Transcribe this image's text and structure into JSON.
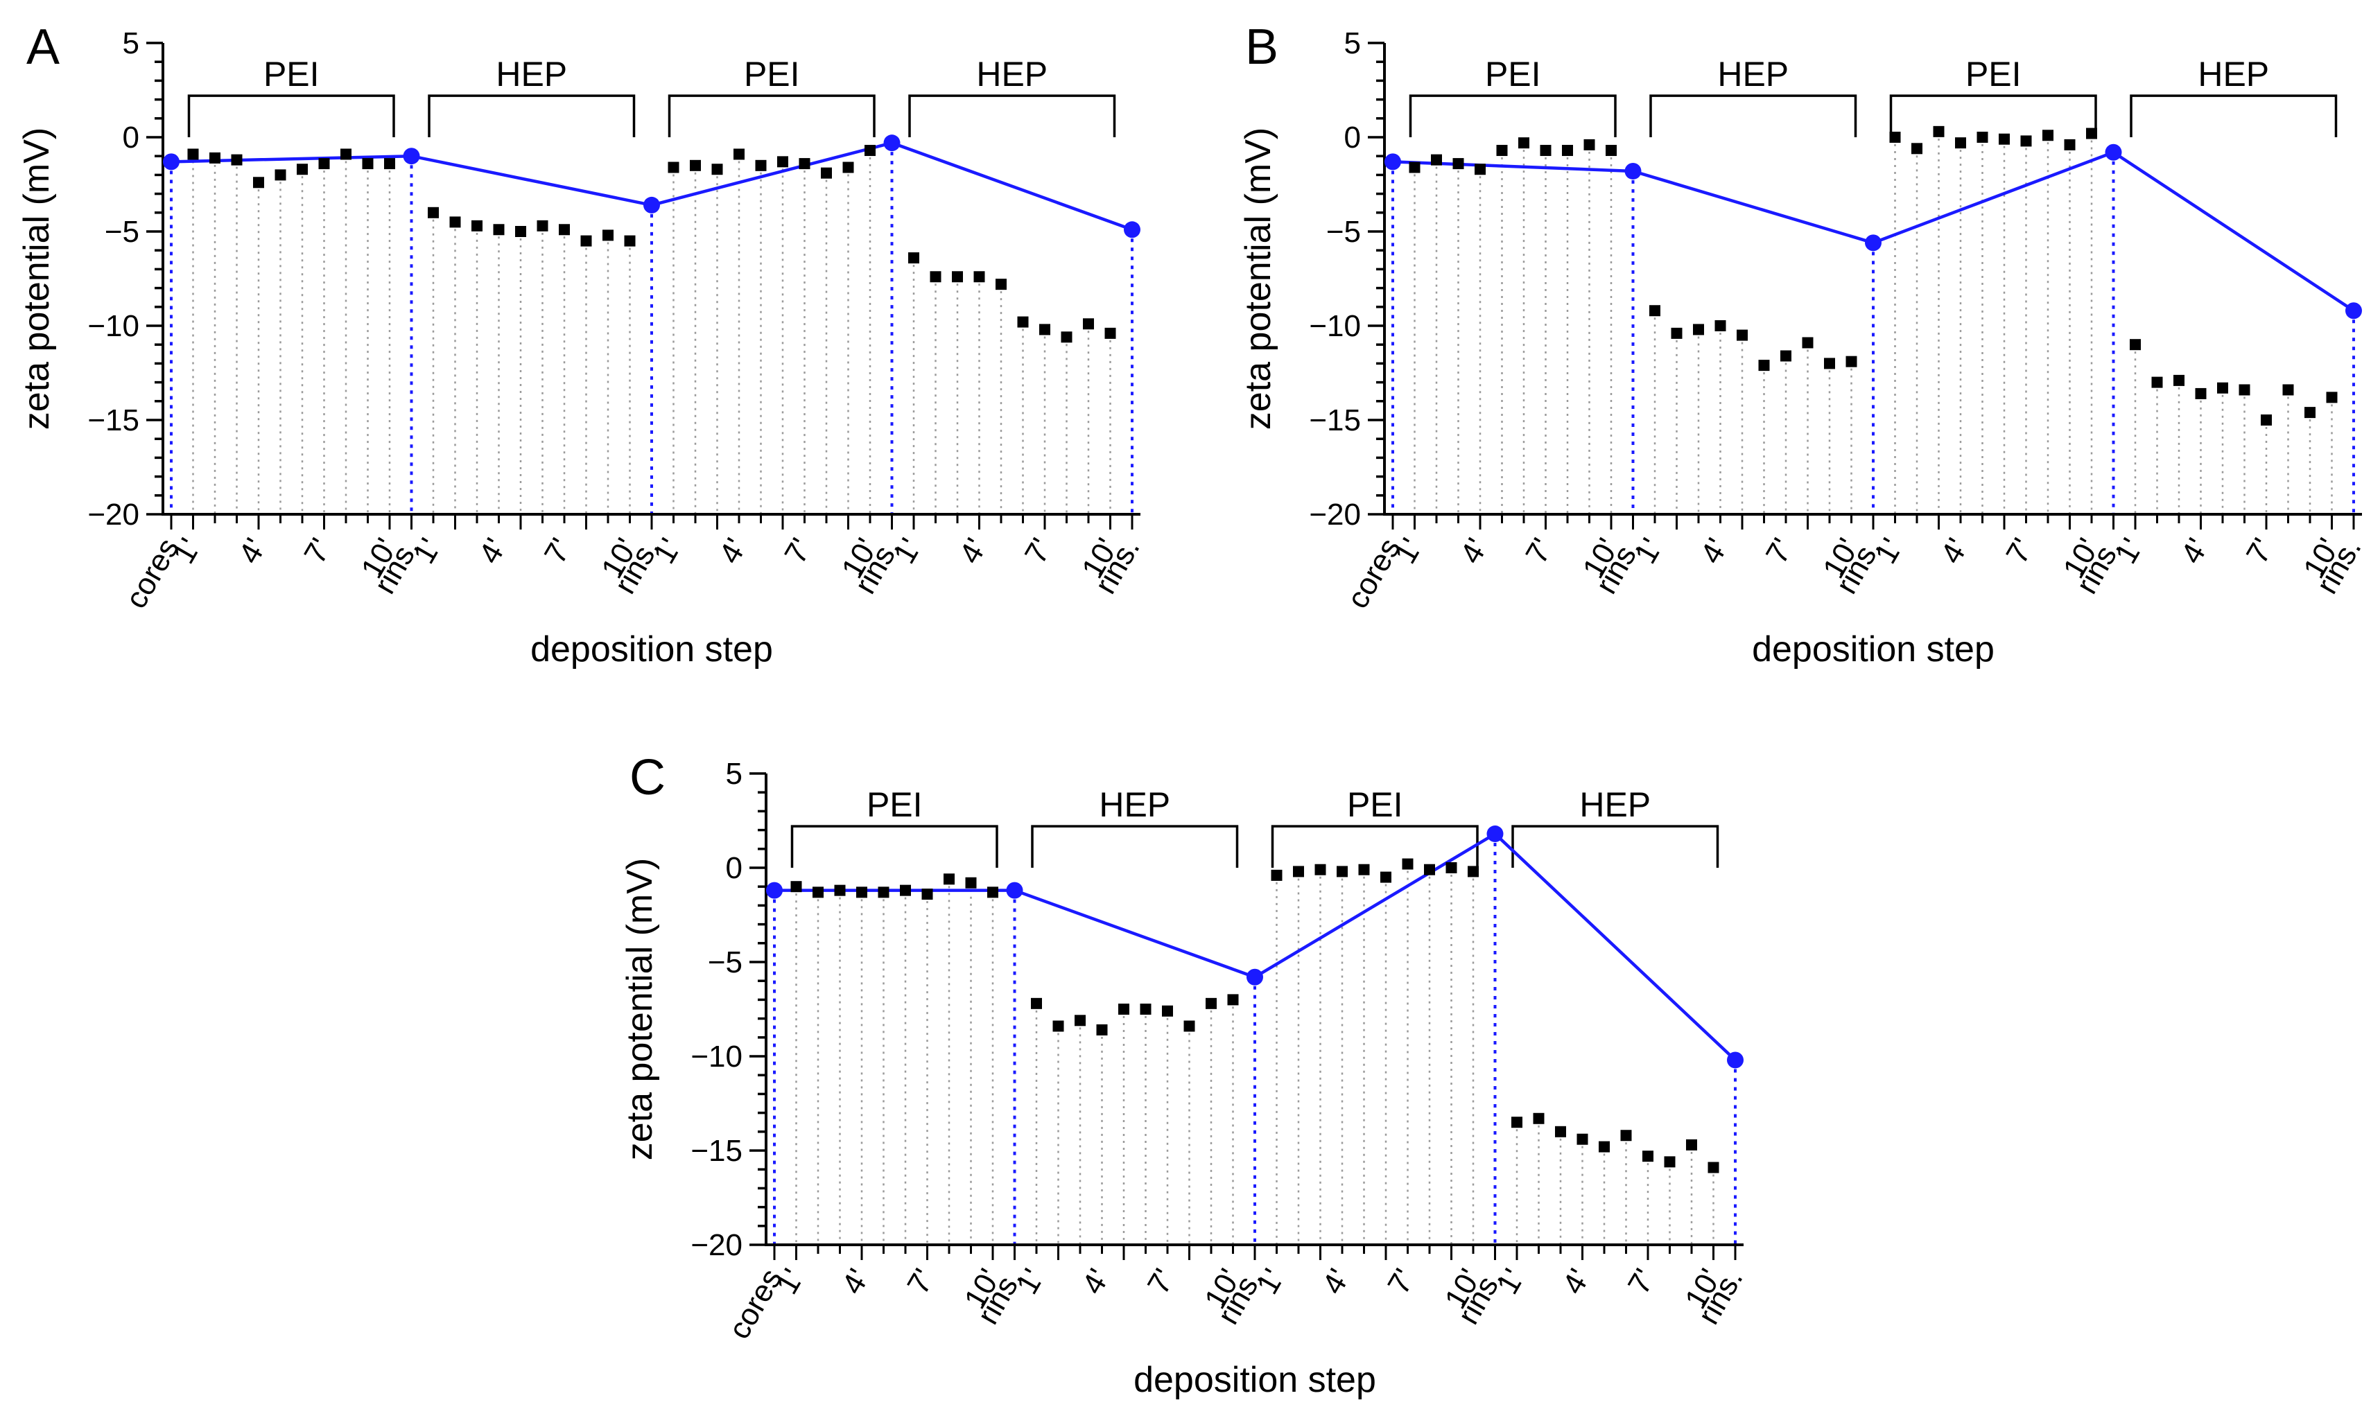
{
  "chart_data": [
    {
      "panel": "A",
      "type": "scatter",
      "xlabel": "deposition step",
      "ylabel": "zeta potential (mV)",
      "ylim": [
        -20,
        5
      ],
      "yticks": [
        5,
        0,
        -5,
        -10,
        -15,
        -20
      ],
      "ytick_labels": [
        "5",
        "0",
        "−5",
        "−10",
        "−15",
        "−20"
      ],
      "x_tick_labels": [
        "cores",
        "1'",
        "4'",
        "7'",
        "10'",
        "rins.",
        "1'",
        "4'",
        "7'",
        "10'",
        "rins.",
        "1'",
        "4'",
        "7'",
        "10'",
        "rins.",
        "1'",
        "4'",
        "7'",
        "10'",
        "rins."
      ],
      "phases": [
        "PEI",
        "HEP",
        "PEI",
        "HEP"
      ],
      "blue_series": {
        "name": "cores / rinsed",
        "color": "#1a1aff",
        "x": [
          0,
          11,
          22,
          33,
          44
        ],
        "values": [
          -1.3,
          -1.0,
          -3.6,
          -0.3,
          -4.9
        ]
      },
      "black_series": [
        [
          -0.9,
          -1.1,
          -1.2,
          -2.4,
          -2.0,
          -1.7,
          -1.4,
          -0.9,
          -1.4,
          -1.4
        ],
        [
          -4.0,
          -4.5,
          -4.7,
          -4.9,
          -5.0,
          -4.7,
          -4.9,
          -5.5,
          -5.2,
          -5.5
        ],
        [
          -1.6,
          -1.5,
          -1.7,
          -0.9,
          -1.5,
          -1.3,
          -1.4,
          -1.9,
          -1.6,
          -0.7
        ],
        [
          -6.4,
          -7.4,
          -7.4,
          -7.4,
          -7.8,
          -9.8,
          -10.2,
          -10.6,
          -9.9,
          -10.4
        ]
      ]
    },
    {
      "panel": "B",
      "type": "scatter",
      "xlabel": "deposition step",
      "ylabel": "zeta potential (mV)",
      "ylim": [
        -20,
        5
      ],
      "yticks": [
        5,
        0,
        -5,
        -10,
        -15,
        -20
      ],
      "ytick_labels": [
        "5",
        "0",
        "−5",
        "−10",
        "−15",
        "−20"
      ],
      "x_tick_labels": [
        "cores",
        "1'",
        "4'",
        "7'",
        "10'",
        "rins.",
        "1'",
        "4'",
        "7'",
        "10'",
        "rins.",
        "1'",
        "4'",
        "7'",
        "10'",
        "rins.",
        "1'",
        "4'",
        "7'",
        "10'",
        "rins."
      ],
      "phases": [
        "PEI",
        "HEP",
        "PEI",
        "HEP"
      ],
      "blue_series": {
        "name": "cores / rinsed",
        "color": "#1a1aff",
        "x": [
          0,
          11,
          22,
          33,
          44
        ],
        "values": [
          -1.3,
          -1.8,
          -5.6,
          -0.8,
          -9.2
        ]
      },
      "black_series": [
        [
          -1.6,
          -1.2,
          -1.4,
          -1.7,
          -0.7,
          -0.3,
          -0.7,
          -0.7,
          -0.4,
          -0.7
        ],
        [
          -9.2,
          -10.4,
          -10.2,
          -10.0,
          -10.5,
          -12.1,
          -11.6,
          -10.9,
          -12.0,
          -11.9
        ],
        [
          0.0,
          -0.6,
          0.3,
          -0.3,
          0.0,
          -0.1,
          -0.2,
          0.1,
          -0.4,
          0.2
        ],
        [
          -11.0,
          -13.0,
          -12.9,
          -13.6,
          -13.3,
          -13.4,
          -15.0,
          -13.4,
          -14.6,
          -13.8
        ]
      ]
    },
    {
      "panel": "C",
      "type": "scatter",
      "xlabel": "deposition step",
      "ylabel": "zeta potential (mV)",
      "ylim": [
        -20,
        5
      ],
      "yticks": [
        5,
        0,
        -5,
        -10,
        -15,
        -20
      ],
      "ytick_labels": [
        "5",
        "0",
        "−5",
        "−10",
        "−15",
        "−20"
      ],
      "x_tick_labels": [
        "cores",
        "1'",
        "4'",
        "7'",
        "10'",
        "rins.",
        "1'",
        "4'",
        "7'",
        "10'",
        "rins.",
        "1'",
        "4'",
        "7'",
        "10'",
        "rins.",
        "1'",
        "4'",
        "7'",
        "10'",
        "rins."
      ],
      "phases": [
        "PEI",
        "HEP",
        "PEI",
        "HEP"
      ],
      "blue_series": {
        "name": "cores / rinsed",
        "color": "#1a1aff",
        "x": [
          0,
          11,
          22,
          33,
          44
        ],
        "values": [
          -1.2,
          -1.2,
          -5.8,
          1.8,
          -10.2
        ]
      },
      "black_series": [
        [
          -1.0,
          -1.3,
          -1.2,
          -1.3,
          -1.3,
          -1.2,
          -1.4,
          -0.6,
          -0.8,
          -1.3
        ],
        [
          -7.2,
          -8.4,
          -8.1,
          -8.6,
          -7.5,
          -7.5,
          -7.6,
          -8.4,
          -7.2,
          -7.0
        ],
        [
          -0.4,
          -0.2,
          -0.1,
          -0.2,
          -0.1,
          -0.5,
          0.2,
          -0.1,
          0.0,
          -0.2
        ],
        [
          -13.5,
          -13.3,
          -14.0,
          -14.4,
          -14.8,
          -14.2,
          -15.3,
          -15.6,
          -14.7,
          -15.9
        ]
      ]
    }
  ]
}
